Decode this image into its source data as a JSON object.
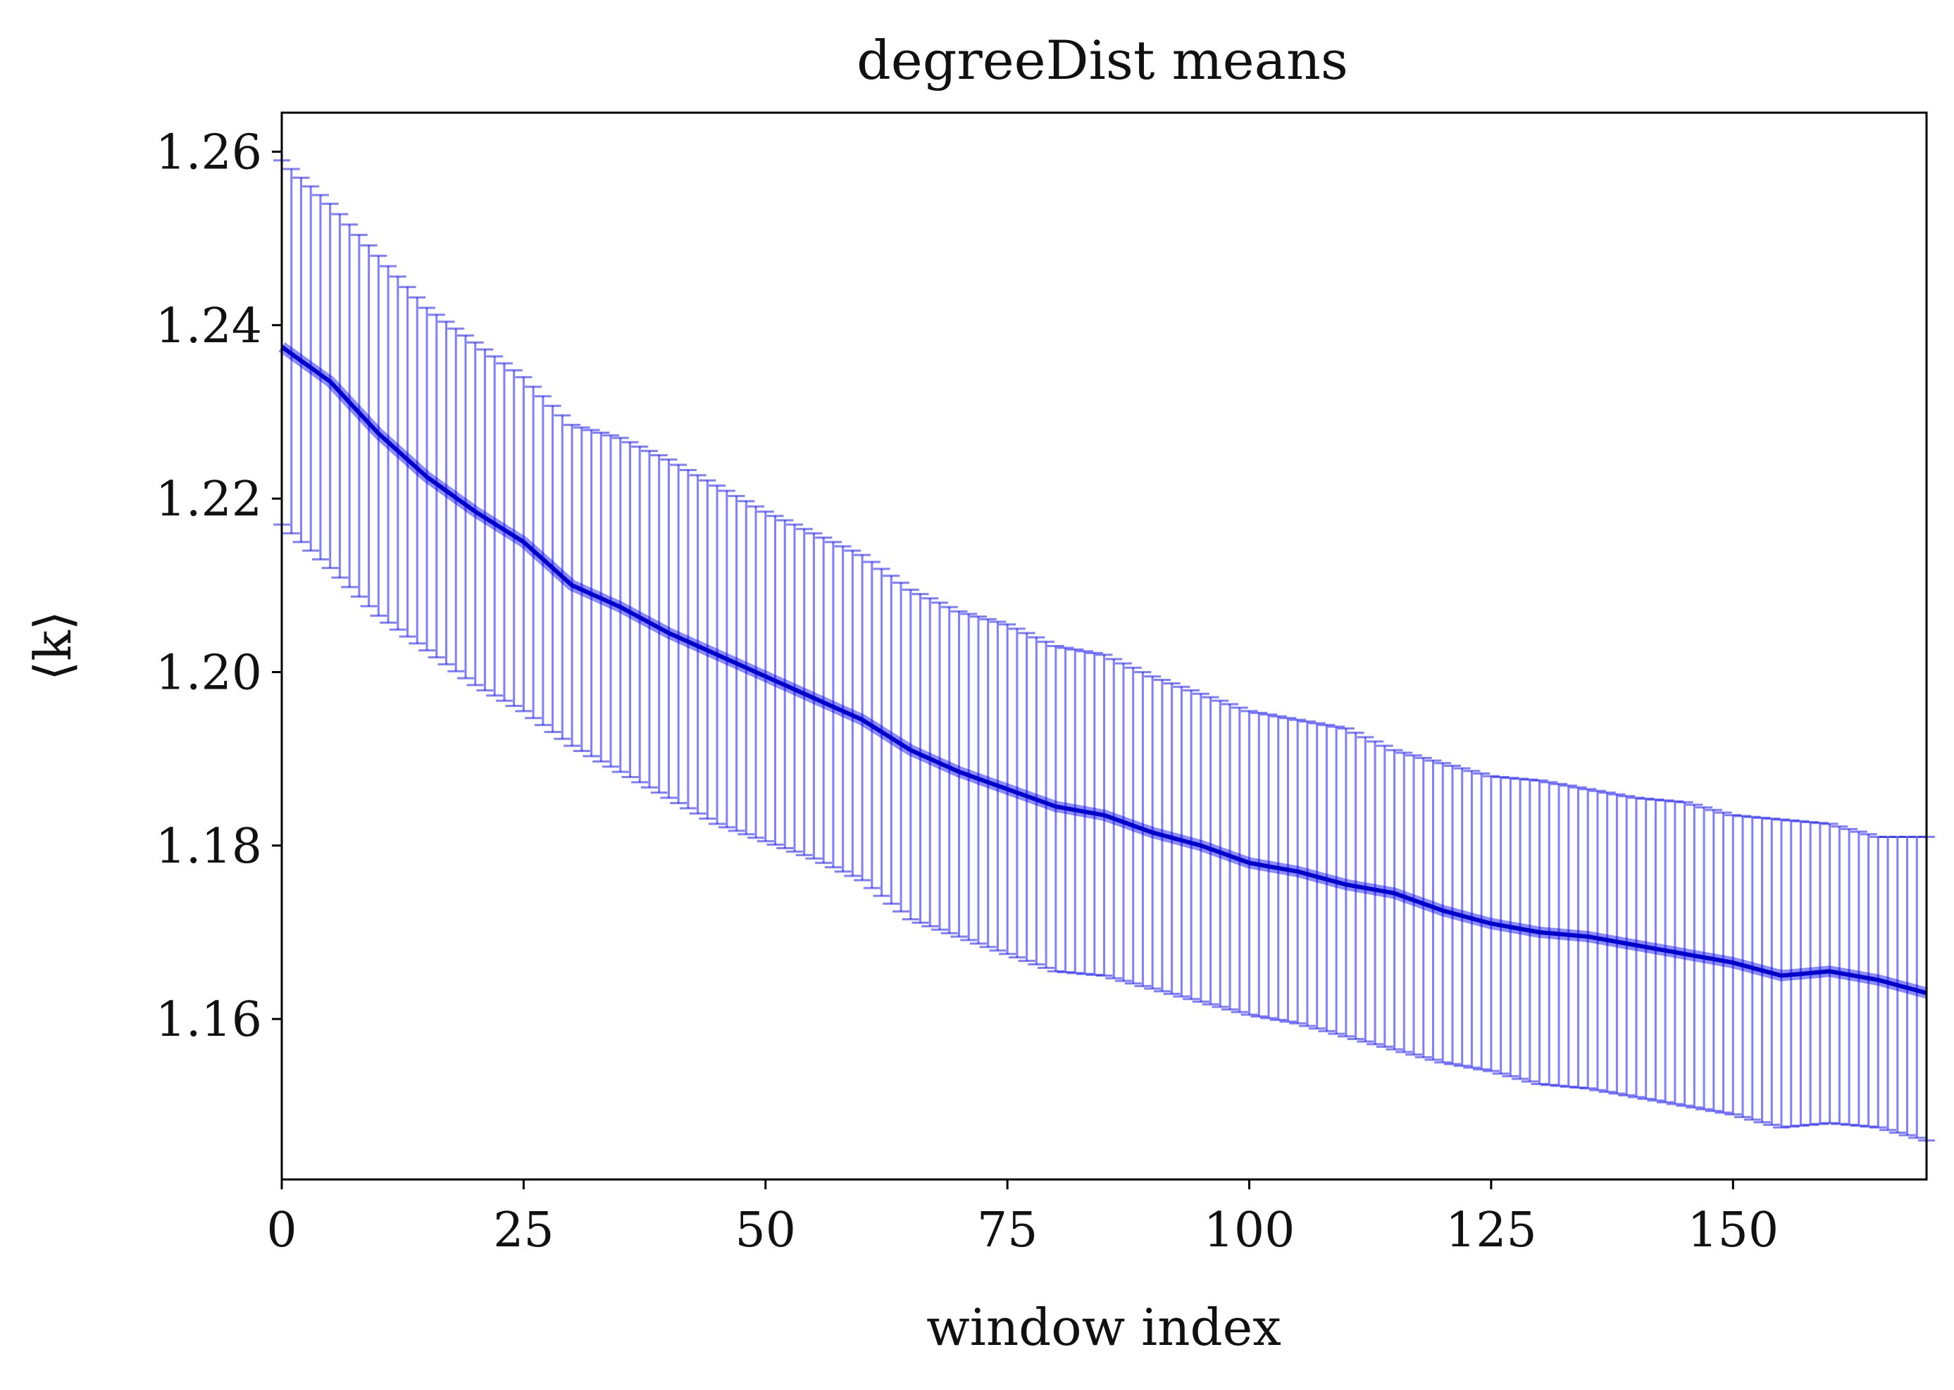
{
  "chart_data": {
    "type": "line",
    "title": "degreeDist means",
    "xlabel": "window index",
    "ylabel": "⟨k⟩",
    "xlim": [
      0,
      170
    ],
    "ylim": [
      1.1415,
      1.2645
    ],
    "x_ticks": [
      0,
      25,
      50,
      75,
      100,
      125,
      150
    ],
    "x_tick_labels": [
      "0",
      "25",
      "50",
      "75",
      "100",
      "125",
      "150"
    ],
    "y_ticks": [
      1.16,
      1.18,
      1.2,
      1.22,
      1.24,
      1.26
    ],
    "y_tick_labels": [
      "1.16",
      "1.18",
      "1.20",
      "1.22",
      "1.24",
      "1.26"
    ],
    "grid": false,
    "legend": null,
    "colors": {
      "mean_line": "#0000ff",
      "error_bars": "#0000ff",
      "axes": "#000000"
    },
    "series": [
      {
        "error_bars": true,
        "x_start": 0,
        "x_step": 1,
        "mean_anchors": [
          [
            0,
            1.2375
          ],
          [
            5,
            1.2335
          ],
          [
            10,
            1.2275
          ],
          [
            15,
            1.2225
          ],
          [
            20,
            1.2185
          ],
          [
            25,
            1.215
          ],
          [
            30,
            1.21
          ],
          [
            35,
            1.2075
          ],
          [
            40,
            1.2045
          ],
          [
            45,
            1.202
          ],
          [
            50,
            1.1995
          ],
          [
            55,
            1.197
          ],
          [
            60,
            1.1945
          ],
          [
            65,
            1.191
          ],
          [
            70,
            1.1885
          ],
          [
            75,
            1.1865
          ],
          [
            80,
            1.1845
          ],
          [
            85,
            1.1835
          ],
          [
            90,
            1.1815
          ],
          [
            95,
            1.18
          ],
          [
            100,
            1.178
          ],
          [
            105,
            1.177
          ],
          [
            110,
            1.1755
          ],
          [
            115,
            1.1745
          ],
          [
            120,
            1.1725
          ],
          [
            125,
            1.171
          ],
          [
            130,
            1.17
          ],
          [
            135,
            1.1695
          ],
          [
            140,
            1.1685
          ],
          [
            145,
            1.1675
          ],
          [
            150,
            1.1665
          ],
          [
            155,
            1.165
          ],
          [
            160,
            1.1655
          ],
          [
            165,
            1.1645
          ],
          [
            170,
            1.163
          ]
        ],
        "upper_anchors": [
          [
            0,
            1.259
          ],
          [
            5,
            1.254
          ],
          [
            10,
            1.248
          ],
          [
            15,
            1.242
          ],
          [
            20,
            1.238
          ],
          [
            25,
            1.234
          ],
          [
            30,
            1.2285
          ],
          [
            35,
            1.227
          ],
          [
            40,
            1.2245
          ],
          [
            45,
            1.2215
          ],
          [
            50,
            1.2185
          ],
          [
            55,
            1.216
          ],
          [
            60,
            1.2135
          ],
          [
            65,
            1.2095
          ],
          [
            70,
            1.207
          ],
          [
            75,
            1.2055
          ],
          [
            80,
            1.203
          ],
          [
            85,
            1.202
          ],
          [
            90,
            1.1995
          ],
          [
            95,
            1.1975
          ],
          [
            100,
            1.1955
          ],
          [
            105,
            1.1945
          ],
          [
            110,
            1.1935
          ],
          [
            115,
            1.191
          ],
          [
            120,
            1.1895
          ],
          [
            125,
            1.188
          ],
          [
            130,
            1.1875
          ],
          [
            135,
            1.1865
          ],
          [
            140,
            1.1855
          ],
          [
            145,
            1.185
          ],
          [
            150,
            1.1835
          ],
          [
            155,
            1.183
          ],
          [
            160,
            1.1825
          ],
          [
            165,
            1.181
          ],
          [
            170,
            1.181
          ]
        ],
        "lower_anchors": [
          [
            0,
            1.217
          ],
          [
            5,
            1.212
          ],
          [
            10,
            1.2065
          ],
          [
            15,
            1.2025
          ],
          [
            20,
            1.1985
          ],
          [
            25,
            1.1955
          ],
          [
            30,
            1.1915
          ],
          [
            35,
            1.1885
          ],
          [
            40,
            1.1855
          ],
          [
            45,
            1.1825
          ],
          [
            50,
            1.1805
          ],
          [
            55,
            1.1785
          ],
          [
            60,
            1.176
          ],
          [
            65,
            1.1715
          ],
          [
            70,
            1.1695
          ],
          [
            75,
            1.1675
          ],
          [
            80,
            1.1655
          ],
          [
            85,
            1.165
          ],
          [
            90,
            1.1635
          ],
          [
            95,
            1.162
          ],
          [
            100,
            1.1605
          ],
          [
            105,
            1.1595
          ],
          [
            110,
            1.158
          ],
          [
            115,
            1.1565
          ],
          [
            120,
            1.155
          ],
          [
            125,
            1.154
          ],
          [
            130,
            1.1525
          ],
          [
            135,
            1.152
          ],
          [
            140,
            1.151
          ],
          [
            145,
            1.15
          ],
          [
            150,
            1.149
          ],
          [
            155,
            1.1475
          ],
          [
            160,
            1.148
          ],
          [
            165,
            1.1475
          ],
          [
            170,
            1.146
          ]
        ]
      }
    ]
  }
}
